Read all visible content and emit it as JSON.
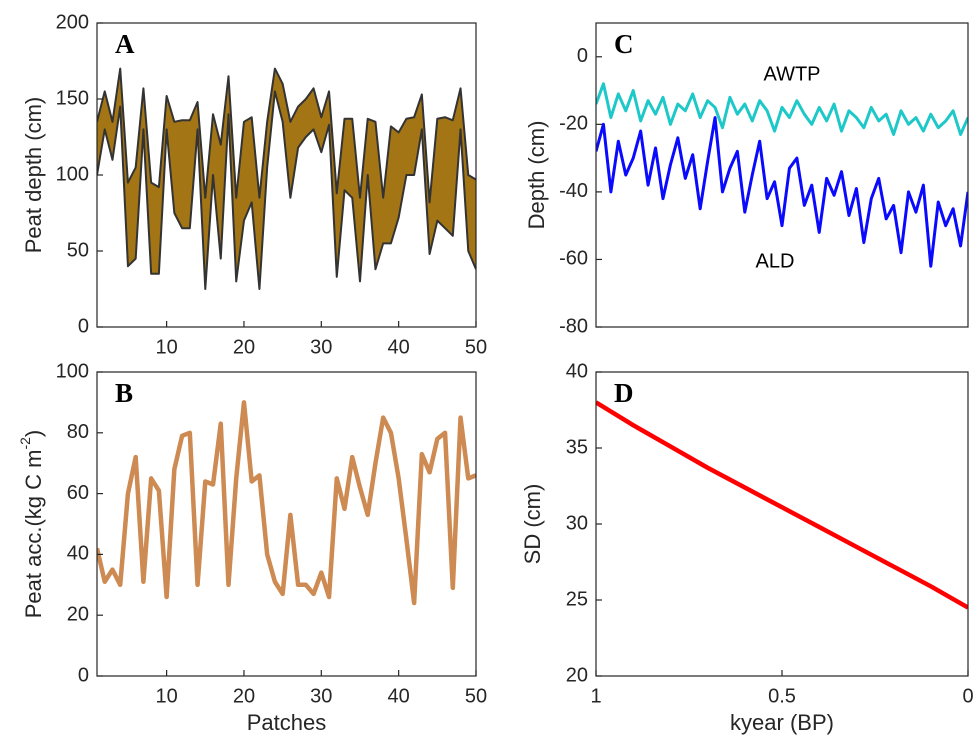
{
  "chart_data": [
    {
      "type": "area",
      "title": "A",
      "ylabel": "Peat depth (cm)",
      "x": [
        1,
        2,
        3,
        4,
        5,
        6,
        7,
        8,
        9,
        10,
        11,
        12,
        13,
        14,
        15,
        16,
        17,
        18,
        19,
        20,
        21,
        22,
        23,
        24,
        25,
        26,
        27,
        28,
        29,
        30,
        31,
        32,
        33,
        34,
        35,
        36,
        37,
        38,
        39,
        40,
        41,
        42,
        43,
        44,
        45,
        46,
        47,
        48,
        49,
        50
      ],
      "series": [
        {
          "color": "#333333",
          "values": [
            135,
            155,
            135,
            170,
            95,
            105,
            157,
            95,
            92,
            152,
            135,
            136,
            136,
            148,
            85,
            140,
            120,
            165,
            85,
            135,
            138,
            85,
            135,
            170,
            160,
            135,
            145,
            150,
            157,
            138,
            155,
            88,
            137,
            137,
            85,
            137,
            135,
            85,
            132,
            128,
            137,
            138,
            153,
            82,
            137,
            138,
            136,
            157,
            100,
            97
          ]
        },
        {
          "color": "#333333",
          "values": [
            100,
            130,
            110,
            145,
            40,
            45,
            130,
            35,
            35,
            130,
            75,
            65,
            65,
            130,
            25,
            100,
            45,
            140,
            30,
            70,
            82,
            25,
            105,
            155,
            135,
            85,
            118,
            125,
            130,
            115,
            133,
            33,
            90,
            85,
            30,
            100,
            38,
            55,
            55,
            72,
            100,
            100,
            130,
            48,
            70,
            65,
            60,
            130,
            50,
            38
          ]
        }
      ],
      "fill_color": "#a37514",
      "xlim": [
        1,
        50
      ],
      "xticks": [
        10,
        20,
        30,
        40,
        50
      ],
      "ylim": [
        0,
        200
      ],
      "yticks": [
        0,
        50,
        100,
        150,
        200
      ]
    },
    {
      "type": "line",
      "title": "B",
      "ylabel": "Peat acc.(kg C m",
      "ylabel_sup": "-2",
      "ylabel_end": ")",
      "xlabel": "Patches",
      "x": [
        1,
        2,
        3,
        4,
        5,
        6,
        7,
        8,
        9,
        10,
        11,
        12,
        13,
        14,
        15,
        16,
        17,
        18,
        19,
        20,
        21,
        22,
        23,
        24,
        25,
        26,
        27,
        28,
        29,
        30,
        31,
        32,
        33,
        34,
        35,
        36,
        37,
        38,
        39,
        40,
        41,
        42,
        43,
        44,
        45,
        46,
        47,
        48,
        49,
        50
      ],
      "series": [
        {
          "color": "#cd8a52",
          "values": [
            42,
            31,
            35,
            30,
            60,
            72,
            31,
            65,
            61,
            26,
            68,
            79,
            80,
            30,
            64,
            63,
            83,
            30,
            65,
            90,
            64,
            66,
            40,
            31,
            27,
            53,
            30,
            30,
            27,
            34,
            26,
            65,
            55,
            72,
            62,
            53,
            70,
            85,
            80,
            65,
            45,
            24,
            73,
            67,
            78,
            80,
            29,
            85,
            65,
            66
          ]
        }
      ],
      "xlim": [
        1,
        50
      ],
      "xticks": [
        10,
        20,
        30,
        40,
        50
      ],
      "ylim": [
        0,
        100
      ],
      "yticks": [
        0,
        20,
        40,
        60,
        80,
        100
      ]
    },
    {
      "type": "line",
      "title": "C",
      "ylabel": "Depth (cm)",
      "annotations": [
        "AWTP",
        "ALD"
      ],
      "x": [
        1,
        0.98,
        0.96,
        0.94,
        0.92,
        0.9,
        0.88,
        0.86,
        0.84,
        0.82,
        0.8,
        0.78,
        0.76,
        0.74,
        0.72,
        0.7,
        0.68,
        0.66,
        0.64,
        0.62,
        0.6,
        0.58,
        0.56,
        0.54,
        0.52,
        0.5,
        0.48,
        0.46,
        0.44,
        0.42,
        0.4,
        0.38,
        0.36,
        0.34,
        0.32,
        0.3,
        0.28,
        0.26,
        0.24,
        0.22,
        0.2,
        0.18,
        0.16,
        0.14,
        0.12,
        0.1,
        0.08,
        0.06,
        0.04,
        0.02,
        0
      ],
      "series": [
        {
          "name": "AWTP",
          "color": "#1ec8c8",
          "values": [
            -14,
            -8,
            -18,
            -11,
            -16,
            -10,
            -19,
            -13,
            -17,
            -12,
            -20,
            -14,
            -16,
            -11,
            -18,
            -13,
            -15,
            -21,
            -12,
            -17,
            -14,
            -19,
            -13,
            -16,
            -22,
            -15,
            -18,
            -13,
            -17,
            -20,
            -15,
            -19,
            -14,
            -22,
            -16,
            -18,
            -21,
            -15,
            -19,
            -17,
            -23,
            -16,
            -20,
            -18,
            -22,
            -17,
            -21,
            -19,
            -16,
            -23,
            -18
          ]
        },
        {
          "name": "ALD",
          "color": "#0a0aff",
          "values": [
            -28,
            -20,
            -40,
            -25,
            -35,
            -30,
            -22,
            -38,
            -27,
            -42,
            -32,
            -24,
            -36,
            -29,
            -45,
            -31,
            -18,
            -40,
            -33,
            -28,
            -46,
            -35,
            -25,
            -42,
            -37,
            -50,
            -33,
            -30,
            -44,
            -38,
            -52,
            -36,
            -41,
            -34,
            -47,
            -39,
            -55,
            -42,
            -36,
            -48,
            -44,
            -58,
            -40,
            -46,
            -38,
            -62,
            -43,
            -50,
            -45,
            -56,
            -40
          ]
        }
      ],
      "xlim": [
        1,
        0
      ],
      "xticks": [],
      "ylim": [
        -80,
        10
      ],
      "yticks": [
        -80,
        -60,
        -40,
        -20,
        0
      ]
    },
    {
      "type": "line",
      "title": "D",
      "ylabel": "SD (cm)",
      "xlabel": "kyear (BP)",
      "x": [
        1,
        0.9,
        0.8,
        0.7,
        0.6,
        0.5,
        0.4,
        0.3,
        0.2,
        0.1,
        0
      ],
      "series": [
        {
          "color": "#ff0000",
          "values": [
            38,
            36.5,
            35.1,
            33.7,
            32.4,
            31.1,
            29.8,
            28.5,
            27.2,
            25.9,
            24.5
          ]
        }
      ],
      "xlim": [
        1,
        0
      ],
      "xticks": [
        1,
        0.5,
        0
      ],
      "ylim": [
        20,
        40
      ],
      "yticks": [
        20,
        25,
        30,
        35,
        40
      ]
    }
  ]
}
